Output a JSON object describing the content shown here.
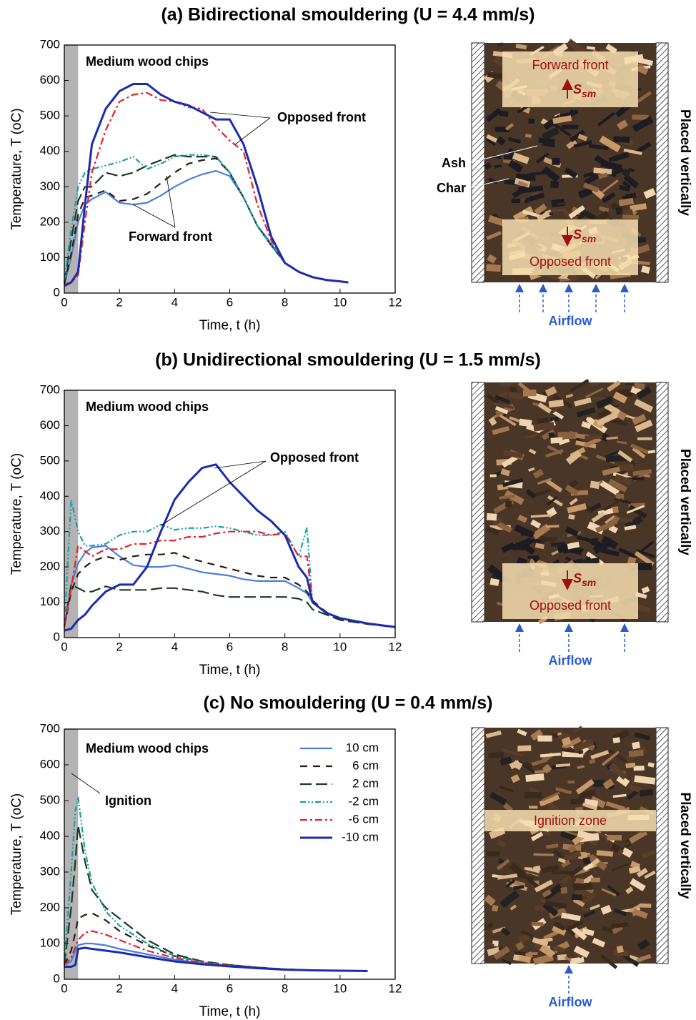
{
  "chart_data": [
    {
      "type": "line",
      "title": "(a) Bidirectional smouldering (U = 4.4 mm/s)",
      "xlabel": "Time, t (h)",
      "ylabel": "Temperature, T (oC)",
      "xlim": [
        0,
        12
      ],
      "ylim": [
        0,
        700
      ],
      "xticks": [
        0,
        2,
        4,
        6,
        8,
        10,
        12
      ],
      "yticks": [
        0,
        100,
        200,
        300,
        400,
        500,
        600,
        700
      ],
      "shaded_band": [
        0,
        0.5
      ],
      "legend": false,
      "annotations": [
        "Medium wood chips",
        "Opposed front",
        "Forward front"
      ],
      "x": [
        0,
        0.25,
        0.5,
        0.75,
        1,
        1.5,
        2,
        2.5,
        3,
        3.5,
        4,
        4.5,
        5,
        5.5,
        6,
        6.5,
        7,
        7.5,
        8,
        8.5,
        9,
        9.5,
        10,
        10.3
      ],
      "series": [
        {
          "color": "#4a7fdc",
          "style": "solid",
          "values": [
            25,
            100,
            200,
            250,
            265,
            285,
            255,
            250,
            255,
            275,
            300,
            320,
            335,
            345,
            330,
            270,
            190,
            140,
            85,
            60,
            45,
            38,
            33,
            30
          ]
        },
        {
          "color": "#2b1a10",
          "style": "dashed",
          "values": [
            25,
            110,
            220,
            270,
            275,
            290,
            260,
            265,
            280,
            310,
            340,
            365,
            375,
            380,
            340,
            270,
            190,
            135,
            85,
            60,
            45,
            37,
            33,
            30
          ]
        },
        {
          "color": "#1a3a20",
          "style": "longdash",
          "values": [
            30,
            150,
            260,
            300,
            300,
            340,
            330,
            340,
            360,
            375,
            390,
            385,
            385,
            385,
            340,
            270,
            190,
            135,
            85,
            60,
            45,
            37,
            33,
            30
          ]
        },
        {
          "color": "#17a0a8",
          "style": "dashdotdot",
          "values": [
            35,
            180,
            300,
            340,
            350,
            360,
            370,
            385,
            350,
            365,
            385,
            390,
            390,
            385,
            340,
            270,
            190,
            135,
            85,
            60,
            45,
            37,
            33,
            30
          ]
        },
        {
          "color": "#e8202a",
          "style": "dashdot",
          "values": [
            25,
            30,
            50,
            200,
            340,
            460,
            540,
            560,
            565,
            545,
            540,
            525,
            520,
            470,
            430,
            400,
            250,
            150,
            85,
            60,
            45,
            37,
            33,
            30
          ]
        },
        {
          "color": "#1a2bb0",
          "style": "solid",
          "values": [
            20,
            30,
            60,
            250,
            420,
            520,
            570,
            590,
            590,
            560,
            540,
            530,
            510,
            490,
            490,
            420,
            300,
            160,
            85,
            60,
            45,
            37,
            33,
            30
          ]
        }
      ]
    },
    {
      "type": "line",
      "title": "(b) Unidirectional smouldering (U = 1.5 mm/s)",
      "xlabel": "Time, t (h)",
      "ylabel": "Temperature, T (oC)",
      "xlim": [
        0,
        12
      ],
      "ylim": [
        0,
        700
      ],
      "xticks": [
        0,
        2,
        4,
        6,
        8,
        10,
        12
      ],
      "yticks": [
        0,
        100,
        200,
        300,
        400,
        500,
        600,
        700
      ],
      "shaded_band": [
        0,
        0.5
      ],
      "legend": false,
      "annotations": [
        "Medium wood chips",
        "Opposed front"
      ],
      "x": [
        0,
        0.25,
        0.5,
        0.75,
        1,
        1.5,
        2,
        2.5,
        3,
        3.5,
        4,
        4.5,
        5,
        5.5,
        6,
        6.5,
        7,
        7.5,
        8,
        8.5,
        8.8,
        9,
        9.5,
        10,
        11,
        12
      ],
      "series": [
        {
          "color": "#4a7fdc",
          "style": "solid",
          "values": [
            30,
            150,
            210,
            240,
            255,
            260,
            230,
            205,
            200,
            200,
            205,
            195,
            185,
            180,
            175,
            165,
            160,
            160,
            160,
            140,
            125,
            100,
            70,
            55,
            40,
            30
          ]
        },
        {
          "color": "#2b1a10",
          "style": "dashed",
          "values": [
            30,
            130,
            180,
            200,
            215,
            230,
            220,
            230,
            235,
            235,
            240,
            225,
            215,
            205,
            195,
            185,
            175,
            170,
            170,
            150,
            130,
            105,
            72,
            55,
            40,
            30
          ]
        },
        {
          "color": "#1a3a20",
          "style": "longdash",
          "values": [
            30,
            150,
            140,
            130,
            130,
            145,
            135,
            135,
            135,
            140,
            140,
            135,
            130,
            120,
            115,
            115,
            115,
            115,
            115,
            110,
            100,
            80,
            65,
            50,
            38,
            30
          ]
        },
        {
          "color": "#17a0a8",
          "style": "dashdotdot",
          "values": [
            30,
            390,
            300,
            260,
            260,
            265,
            290,
            300,
            300,
            320,
            305,
            310,
            310,
            315,
            310,
            300,
            290,
            290,
            300,
            230,
            310,
            100,
            70,
            55,
            40,
            30
          ]
        },
        {
          "color": "#e8202a",
          "style": "dashdot",
          "values": [
            30,
            140,
            260,
            245,
            230,
            250,
            250,
            265,
            265,
            275,
            275,
            285,
            285,
            295,
            300,
            300,
            300,
            290,
            295,
            230,
            230,
            100,
            70,
            55,
            40,
            30
          ]
        },
        {
          "color": "#1a2bb0",
          "style": "solid",
          "values": [
            20,
            25,
            50,
            65,
            90,
            130,
            150,
            150,
            200,
            300,
            390,
            440,
            480,
            490,
            440,
            400,
            360,
            330,
            290,
            200,
            170,
            100,
            70,
            55,
            40,
            30
          ]
        }
      ]
    },
    {
      "type": "line",
      "title": "(c) No smouldering (U = 0.4 mm/s)",
      "xlabel": "Time, t (h)",
      "ylabel": "Temperature, T (oC)",
      "xlim": [
        0,
        12
      ],
      "ylim": [
        0,
        700
      ],
      "xticks": [
        0,
        2,
        4,
        6,
        8,
        10,
        12
      ],
      "yticks": [
        0,
        100,
        200,
        300,
        400,
        500,
        600,
        700
      ],
      "shaded_band": [
        0,
        0.5
      ],
      "legend": true,
      "annotations": [
        "Medium wood chips",
        "Ignition"
      ],
      "x": [
        0,
        0.25,
        0.4,
        0.5,
        0.75,
        1,
        1.5,
        2,
        3,
        4,
        5,
        6,
        7,
        8,
        9,
        10,
        11
      ],
      "series": [
        {
          "name": "10 cm",
          "color": "#4a7fdc",
          "style": "solid",
          "values": [
            40,
            50,
            80,
            95,
            100,
            100,
            95,
            85,
            70,
            55,
            45,
            38,
            32,
            28,
            25,
            24,
            23
          ]
        },
        {
          "name": "6 cm",
          "color": "#2b1a10",
          "style": "dashed",
          "values": [
            40,
            80,
            130,
            170,
            180,
            185,
            165,
            135,
            95,
            65,
            50,
            40,
            33,
            28,
            25,
            24,
            23
          ]
        },
        {
          "name": "2 cm",
          "color": "#1a3a20",
          "style": "longdash",
          "values": [
            40,
            200,
            330,
            430,
            330,
            250,
            200,
            170,
            110,
            70,
            50,
            40,
            33,
            28,
            25,
            24,
            23
          ]
        },
        {
          "name": "-2 cm",
          "color": "#17a0a8",
          "style": "dashdotdot",
          "values": [
            50,
            300,
            470,
            510,
            360,
            270,
            190,
            150,
            100,
            65,
            48,
            38,
            32,
            28,
            25,
            24,
            23
          ]
        },
        {
          "name": "-6 cm",
          "color": "#e8202a",
          "style": "dashdot",
          "values": [
            40,
            60,
            90,
            110,
            130,
            135,
            125,
            110,
            80,
            60,
            46,
            38,
            32,
            28,
            25,
            24,
            23
          ]
        },
        {
          "name": "-10 cm",
          "color": "#1a2bb0",
          "style": "solid",
          "values": [
            35,
            35,
            40,
            85,
            88,
            85,
            80,
            75,
            62,
            50,
            42,
            36,
            31,
            27,
            25,
            24,
            23
          ]
        }
      ]
    }
  ],
  "photos": [
    {
      "top_label": "Forward front",
      "bottom_label": "Opposed front",
      "symbol": "S",
      "subscript": "sm",
      "ash": "Ash",
      "char": "Char",
      "airflow": "Airflow",
      "side_label": "Placed vertically"
    },
    {
      "bottom_label": "Opposed front",
      "symbol": "S",
      "subscript": "sm",
      "airflow": "Airflow",
      "side_label": "Placed vertically"
    },
    {
      "zone_label": "Ignition zone",
      "airflow": "Airflow",
      "side_label": "Placed vertically"
    }
  ]
}
